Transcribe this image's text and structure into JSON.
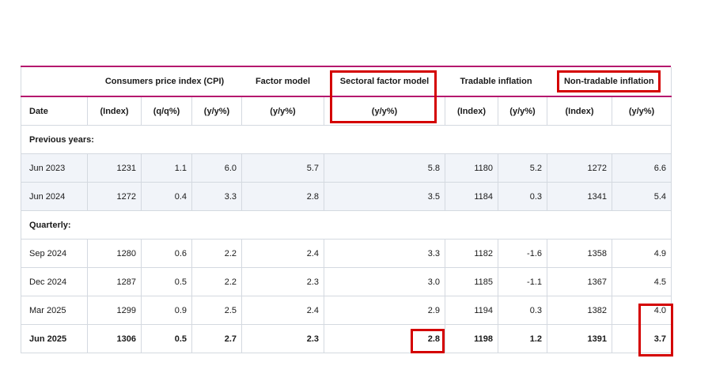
{
  "header": {
    "groups": {
      "cpi": "Consumers price index (CPI)",
      "factor": "Factor model",
      "sectoral": "Sectoral factor model",
      "tradable": "Tradable inflation",
      "nontradable": "Non-tradable inflation"
    },
    "sub": [
      "Date",
      "(Index)",
      "(q/q%)",
      "(y/y%)",
      "(y/y%)",
      "(y/y%)",
      "(Index)",
      "(y/y%)",
      "(Index)",
      "(y/y%)"
    ]
  },
  "sections": {
    "previous": "Previous years:",
    "quarterly": "Quarterly:"
  },
  "rows": {
    "previous": [
      [
        "Jun 2023",
        "1231",
        "1.1",
        "6.0",
        "5.7",
        "5.8",
        "1180",
        "5.2",
        "1272",
        "6.6"
      ],
      [
        "Jun 2024",
        "1272",
        "0.4",
        "3.3",
        "2.8",
        "3.5",
        "1184",
        "0.3",
        "1341",
        "5.4"
      ]
    ],
    "quarterly": [
      [
        "Sep 2024",
        "1280",
        "0.6",
        "2.2",
        "2.4",
        "3.3",
        "1182",
        "-1.6",
        "1358",
        "4.9"
      ],
      [
        "Dec 2024",
        "1287",
        "0.5",
        "2.2",
        "2.3",
        "3.0",
        "1185",
        "-1.1",
        "1367",
        "4.5"
      ],
      [
        "Mar 2025",
        "1299",
        "0.9",
        "2.5",
        "2.4",
        "2.9",
        "1194",
        "0.3",
        "1382",
        "4.0"
      ],
      [
        "Jun 2025",
        "1306",
        "0.5",
        "2.7",
        "2.3",
        "2.8",
        "1198",
        "1.2",
        "1391",
        "3.7"
      ]
    ]
  },
  "colors": {
    "accent_rule": "#b5186e",
    "highlight_box": "#d40000",
    "shaded_row": "#f1f4f9"
  }
}
